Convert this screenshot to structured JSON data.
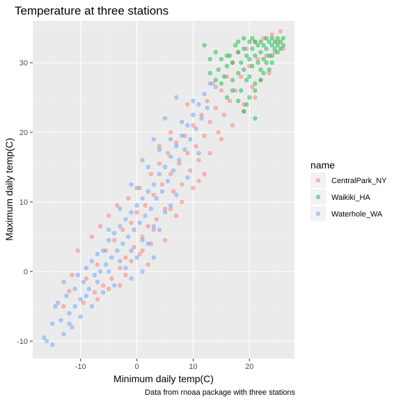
{
  "chart_data": {
    "type": "scatter",
    "title": "Temperature at three stations",
    "xlabel": "Minimum daily temp(C)",
    "ylabel": "Maximum daily temp(C)",
    "caption": "Data from rnoaa package with three stations",
    "xlim": [
      -18.5,
      28
    ],
    "ylim": [
      -12.5,
      36
    ],
    "x_ticks": [
      -10,
      0,
      10,
      20
    ],
    "y_ticks": [
      -10,
      0,
      10,
      20,
      30
    ],
    "grid": true,
    "legend": {
      "title": "name",
      "placement": "right"
    },
    "series": [
      {
        "name": "CentralPark_NY",
        "color": "#F8766D",
        "points": [
          [
            -13,
            -5
          ],
          [
            -12,
            -2.8
          ],
          [
            -11.5,
            -0.5
          ],
          [
            -10.5,
            3
          ],
          [
            -9.5,
            -4.5
          ],
          [
            -9,
            -1
          ],
          [
            -8,
            5
          ],
          [
            -7.5,
            -3
          ],
          [
            -7,
            1
          ],
          [
            -6.5,
            6.5
          ],
          [
            -6,
            -2
          ],
          [
            -5.5,
            3
          ],
          [
            -5,
            8
          ],
          [
            -4.5,
            -1
          ],
          [
            -4,
            4.5
          ],
          [
            -3.5,
            9.5
          ],
          [
            -3,
            0.5
          ],
          [
            -2.5,
            6
          ],
          [
            -2,
            2
          ],
          [
            -1.5,
            10.5
          ],
          [
            -1,
            7
          ],
          [
            -0.5,
            3.5
          ],
          [
            0,
            8.5
          ],
          [
            0.5,
            12
          ],
          [
            1,
            5
          ],
          [
            1.5,
            9.5
          ],
          [
            2,
            6.5
          ],
          [
            2.5,
            14
          ],
          [
            3,
            11
          ],
          [
            3.5,
            7.5
          ],
          [
            4,
            15.5
          ],
          [
            4.5,
            12.5
          ],
          [
            5,
            9
          ],
          [
            5.5,
            17
          ],
          [
            6,
            14
          ],
          [
            6.5,
            11.5
          ],
          [
            7,
            18.5
          ],
          [
            7.5,
            15.5
          ],
          [
            8,
            12.5
          ],
          [
            8.5,
            19.5
          ],
          [
            9,
            17
          ],
          [
            9.5,
            14.5
          ],
          [
            10,
            21
          ],
          [
            10.5,
            18
          ],
          [
            11,
            16
          ],
          [
            11.5,
            22.5
          ],
          [
            12,
            19.5
          ],
          [
            12.5,
            24.5
          ],
          [
            13,
            21.5
          ],
          [
            13.5,
            27
          ],
          [
            14,
            23.5
          ],
          [
            14.5,
            20
          ],
          [
            15,
            26
          ],
          [
            15.5,
            22.5
          ],
          [
            16,
            28
          ],
          [
            16.5,
            24.5
          ],
          [
            17,
            30
          ],
          [
            17.5,
            26
          ],
          [
            18,
            31.5
          ],
          [
            18.5,
            28
          ],
          [
            19,
            24
          ],
          [
            19.5,
            32
          ],
          [
            20,
            29.5
          ],
          [
            20.5,
            26.5
          ],
          [
            21,
            33
          ],
          [
            21.5,
            30.5
          ],
          [
            22,
            27.5
          ],
          [
            22.5,
            33.5
          ],
          [
            23,
            31
          ],
          [
            23.5,
            28.5
          ],
          [
            24,
            34
          ],
          [
            24.5,
            31.5
          ],
          [
            25,
            33
          ],
          [
            25.5,
            34.5
          ],
          [
            26,
            32
          ],
          [
            2,
            1
          ],
          [
            5,
            4.5
          ],
          [
            7,
            8
          ],
          [
            10,
            12
          ],
          [
            12,
            14
          ],
          [
            4,
            18
          ],
          [
            6,
            20
          ],
          [
            9,
            24
          ],
          [
            -3,
            -2
          ],
          [
            -1,
            1.5
          ],
          [
            1,
            3
          ],
          [
            3,
            6
          ],
          [
            6,
            9
          ],
          [
            8,
            10
          ],
          [
            11,
            13
          ],
          [
            13,
            17
          ],
          [
            15,
            19
          ],
          [
            17,
            21
          ],
          [
            19,
            23
          ],
          [
            21,
            25
          ],
          [
            -7,
            -4
          ],
          [
            -5,
            -2.5
          ],
          [
            -2,
            -0.5
          ],
          [
            0.5,
            2.5
          ],
          [
            2.5,
            4
          ]
        ]
      },
      {
        "name": "Waikiki_HA",
        "color": "#00BA38",
        "points": [
          [
            12,
            32.5
          ],
          [
            13,
            30.5
          ],
          [
            14,
            31.5
          ],
          [
            14.5,
            29
          ],
          [
            15,
            30.5
          ],
          [
            15.5,
            28
          ],
          [
            16,
            29.5
          ],
          [
            16.5,
            31
          ],
          [
            17,
            27.5
          ],
          [
            17,
            30
          ],
          [
            17.5,
            32.5
          ],
          [
            18,
            28.5
          ],
          [
            18,
            31.5
          ],
          [
            18.5,
            26
          ],
          [
            18.5,
            30
          ],
          [
            19,
            32
          ],
          [
            19,
            29
          ],
          [
            19.5,
            27.5
          ],
          [
            19.5,
            31
          ],
          [
            20,
            33
          ],
          [
            20,
            30.5
          ],
          [
            20,
            28
          ],
          [
            20.5,
            32
          ],
          [
            20.5,
            29.5
          ],
          [
            21,
            33
          ],
          [
            21,
            31
          ],
          [
            21,
            27
          ],
          [
            21.5,
            32.5
          ],
          [
            21.5,
            30
          ],
          [
            22,
            33
          ],
          [
            22,
            31.5
          ],
          [
            22,
            29
          ],
          [
            22.5,
            32.5
          ],
          [
            22.5,
            30.5
          ],
          [
            23,
            33.5
          ],
          [
            23,
            32
          ],
          [
            23,
            30
          ],
          [
            23.5,
            33
          ],
          [
            23.5,
            31
          ],
          [
            24,
            33.5
          ],
          [
            24,
            32.5
          ],
          [
            24,
            31
          ],
          [
            24.5,
            33
          ],
          [
            24.5,
            32
          ],
          [
            25,
            33.5
          ],
          [
            25,
            32.5
          ],
          [
            25.5,
            33
          ],
          [
            25.5,
            32
          ],
          [
            26,
            32.5
          ],
          [
            26,
            33.5
          ],
          [
            16,
            25
          ],
          [
            18,
            24.5
          ],
          [
            19,
            23
          ],
          [
            20,
            25
          ],
          [
            21,
            26
          ],
          [
            22,
            27.5
          ],
          [
            17,
            26
          ],
          [
            15,
            27
          ],
          [
            14,
            27.5
          ],
          [
            13,
            28.5
          ],
          [
            21,
            22
          ],
          [
            19.5,
            24
          ],
          [
            22.5,
            28.5
          ],
          [
            23.5,
            29
          ],
          [
            18,
            33
          ],
          [
            19,
            33.5
          ],
          [
            20.5,
            33.5
          ],
          [
            24,
            30
          ],
          [
            25,
            31.5
          ],
          [
            16,
            31
          ]
        ]
      },
      {
        "name": "Waterhole_WA",
        "color": "#619CFF",
        "points": [
          [
            -16.5,
            -9.5
          ],
          [
            -16,
            -10
          ],
          [
            -15,
            -10.5
          ],
          [
            -14.5,
            -5
          ],
          [
            -14,
            -4.5
          ],
          [
            -13.5,
            -7
          ],
          [
            -13,
            -1.5
          ],
          [
            -12.5,
            -3.5
          ],
          [
            -12,
            -6
          ],
          [
            -11.5,
            -8
          ],
          [
            -11,
            -2.5
          ],
          [
            -10.5,
            -0.5
          ],
          [
            -10,
            -4
          ],
          [
            -9.5,
            -1.5
          ],
          [
            -9,
            0.5
          ],
          [
            -8.5,
            -2.5
          ],
          [
            -8,
            1.5
          ],
          [
            -7.5,
            -0.5
          ],
          [
            -7,
            2.5
          ],
          [
            -6.5,
            0
          ],
          [
            -6,
            3
          ],
          [
            -5.5,
            1
          ],
          [
            -5,
            4.5
          ],
          [
            -4.5,
            2
          ],
          [
            -4,
            5.5
          ],
          [
            -3.5,
            3
          ],
          [
            -3,
            6.5
          ],
          [
            -2.5,
            4
          ],
          [
            -2,
            7.5
          ],
          [
            -1.5,
            5
          ],
          [
            -1,
            8.5
          ],
          [
            -0.5,
            6
          ],
          [
            0,
            9.5
          ],
          [
            0.5,
            7
          ],
          [
            1,
            10.5
          ],
          [
            1.5,
            8
          ],
          [
            2,
            11.5
          ],
          [
            2.5,
            9
          ],
          [
            3,
            12.5
          ],
          [
            3.5,
            10.5
          ],
          [
            4,
            14
          ],
          [
            4.5,
            11.5
          ],
          [
            5,
            15
          ],
          [
            5.5,
            13
          ],
          [
            6,
            16.5
          ],
          [
            6.5,
            14.5
          ],
          [
            7,
            18
          ],
          [
            7.5,
            16
          ],
          [
            8,
            19.5
          ],
          [
            8.5,
            17.5
          ],
          [
            9,
            21
          ],
          [
            9.5,
            19
          ],
          [
            10,
            22.5
          ],
          [
            10.5,
            20.5
          ],
          [
            11,
            24
          ],
          [
            11.5,
            22
          ],
          [
            12,
            25.5
          ],
          [
            12.5,
            23.5
          ],
          [
            13,
            27
          ],
          [
            14,
            26.5
          ],
          [
            -15,
            -7.5
          ],
          [
            -13,
            -9
          ],
          [
            -11,
            -5
          ],
          [
            -9,
            -3.5
          ],
          [
            -7,
            -1.5
          ],
          [
            -5,
            0
          ],
          [
            -3,
            1.5
          ],
          [
            -1,
            3
          ],
          [
            1,
            4.5
          ],
          [
            3,
            6.5
          ],
          [
            5,
            8.5
          ],
          [
            7,
            11
          ],
          [
            9,
            13.5
          ],
          [
            11,
            17
          ],
          [
            -4,
            -2
          ],
          [
            -2,
            0.5
          ],
          [
            0,
            2
          ],
          [
            2,
            4
          ],
          [
            4,
            6
          ],
          [
            6,
            9.5
          ],
          [
            -1,
            -1
          ],
          [
            1,
            0
          ],
          [
            3,
            2
          ],
          [
            -6,
            -3
          ],
          [
            -8,
            -5
          ],
          [
            -10,
            -6.5
          ],
          [
            -12,
            -7.5
          ],
          [
            0,
            12
          ],
          [
            2,
            15
          ],
          [
            4,
            17.5
          ],
          [
            6,
            19
          ],
          [
            8,
            21.5
          ],
          [
            10,
            24.5
          ],
          [
            -5,
            6
          ],
          [
            -3,
            9
          ],
          [
            -1,
            12.5
          ],
          [
            7,
            25
          ],
          [
            5,
            22
          ],
          [
            3,
            19
          ],
          [
            1,
            16
          ]
        ]
      }
    ]
  }
}
